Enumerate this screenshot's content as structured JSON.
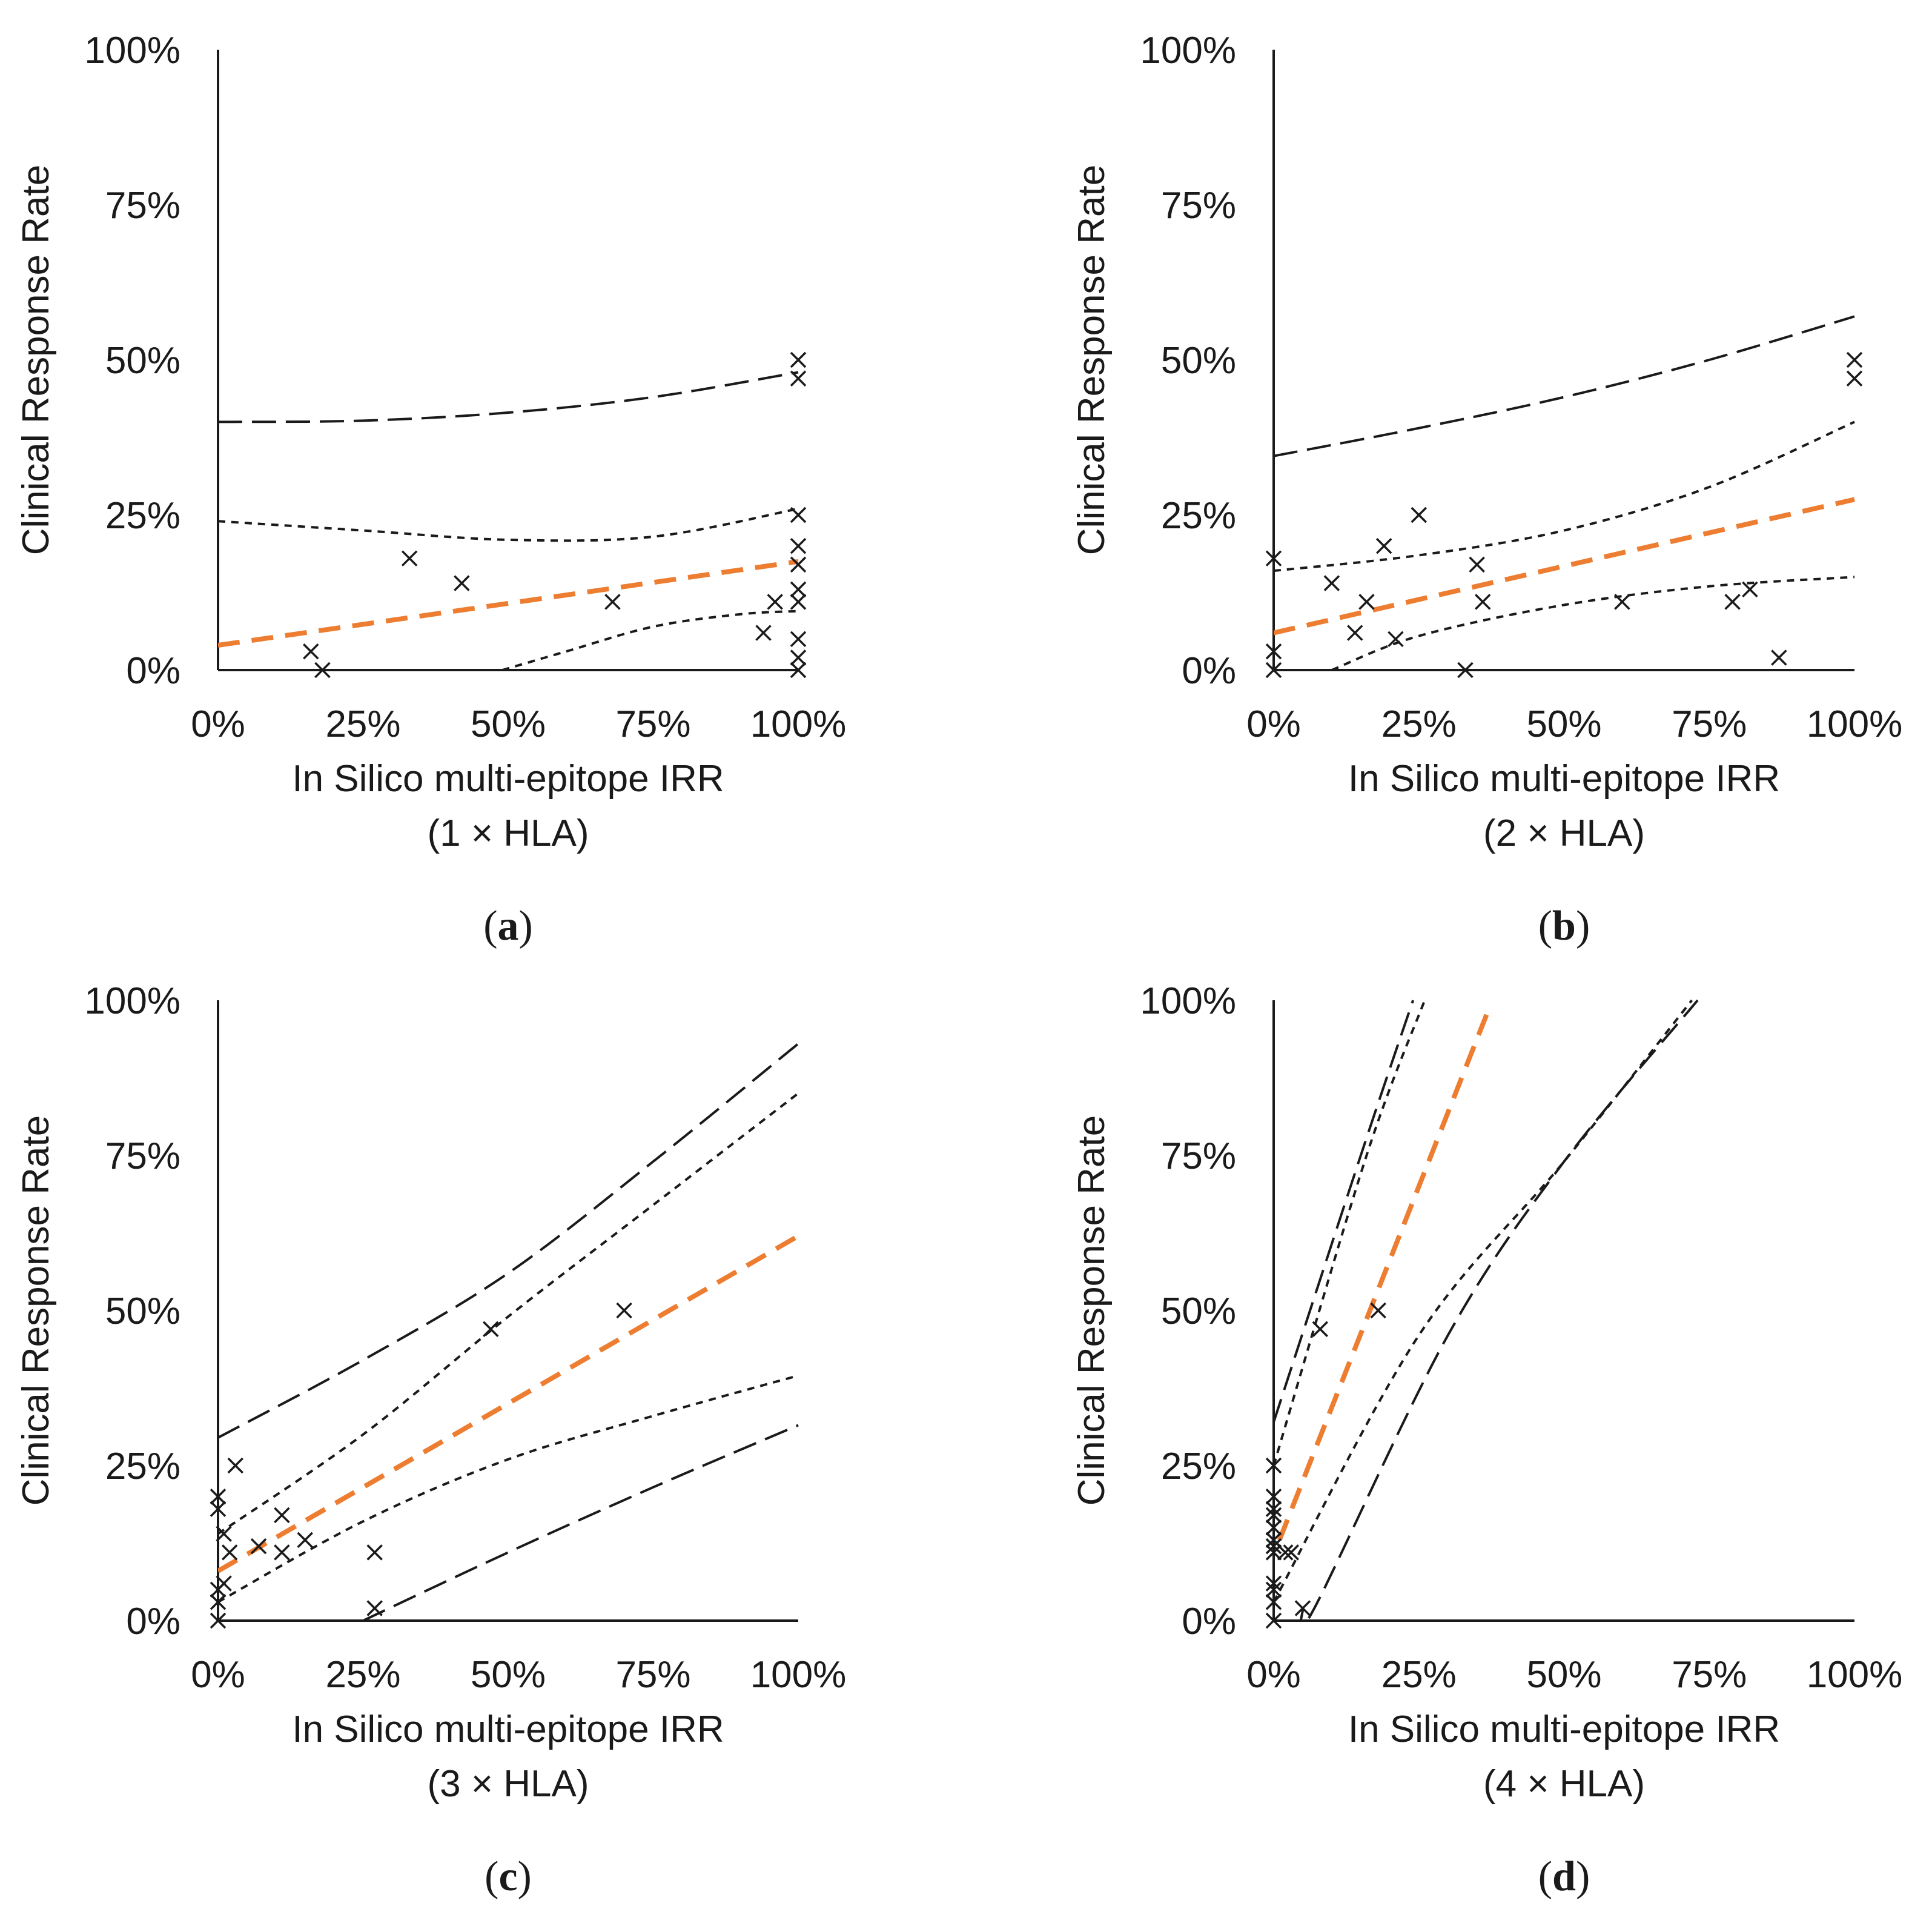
{
  "chart_data": [
    {
      "type": "scatter",
      "panel_label": "a",
      "xlabel": "In Silico multi-epitope IRR",
      "xlabel_sub": "(1 × HLA)",
      "ylabel": "Clinical Response Rate",
      "x_ticks": [
        "0%",
        "25%",
        "50%",
        "75%",
        "100%"
      ],
      "y_ticks": [
        "0%",
        "25%",
        "50%",
        "75%",
        "100%"
      ],
      "xlim": [
        0,
        100
      ],
      "ylim": [
        0,
        100
      ],
      "points": [
        [
          16,
          3
        ],
        [
          18,
          0
        ],
        [
          33,
          18
        ],
        [
          42,
          14
        ],
        [
          68,
          11
        ],
        [
          94,
          6
        ],
        [
          96,
          11
        ],
        [
          100,
          50
        ],
        [
          100,
          47
        ],
        [
          100,
          25
        ],
        [
          100,
          20
        ],
        [
          100,
          17
        ],
        [
          100,
          13
        ],
        [
          100,
          11
        ],
        [
          100,
          5
        ],
        [
          100,
          2
        ],
        [
          100,
          0
        ]
      ],
      "fit": [
        [
          0,
          4
        ],
        [
          100,
          17.5
        ]
      ],
      "ci_inner": [
        [
          [
            0,
            24
          ],
          [
            25,
            22.5
          ],
          [
            50,
            21
          ],
          [
            75,
            21.5
          ],
          [
            100,
            26
          ]
        ],
        [
          [
            49,
            0
          ],
          [
            60,
            3
          ],
          [
            75,
            7
          ],
          [
            90,
            9
          ],
          [
            100,
            9.5
          ]
        ]
      ],
      "ci_outer": [
        [
          [
            0,
            40
          ],
          [
            25,
            40.2
          ],
          [
            50,
            41.5
          ],
          [
            75,
            44
          ],
          [
            100,
            48
          ]
        ]
      ]
    },
    {
      "type": "scatter",
      "panel_label": "b",
      "xlabel": "In Silico multi-epitope IRR",
      "xlabel_sub": "(2 × HLA)",
      "ylabel": "Clinical Response Rate",
      "x_ticks": [
        "0%",
        "25%",
        "50%",
        "75%",
        "100%"
      ],
      "y_ticks": [
        "0%",
        "25%",
        "50%",
        "75%",
        "100%"
      ],
      "xlim": [
        0,
        100
      ],
      "ylim": [
        0,
        100
      ],
      "points": [
        [
          0,
          18
        ],
        [
          0,
          3
        ],
        [
          0,
          0
        ],
        [
          10,
          14
        ],
        [
          14,
          6
        ],
        [
          16,
          11
        ],
        [
          19,
          20
        ],
        [
          21,
          5
        ],
        [
          25,
          25
        ],
        [
          33,
          0
        ],
        [
          35,
          17
        ],
        [
          36,
          11
        ],
        [
          60,
          11
        ],
        [
          79,
          11
        ],
        [
          82,
          13
        ],
        [
          87,
          2
        ],
        [
          100,
          50
        ],
        [
          100,
          47
        ]
      ],
      "fit": [
        [
          0,
          6
        ],
        [
          100,
          27.5
        ]
      ],
      "ci_inner": [
        [
          [
            0,
            16
          ],
          [
            25,
            18.5
          ],
          [
            50,
            22.5
          ],
          [
            75,
            29.5
          ],
          [
            100,
            40
          ]
        ],
        [
          [
            10,
            0
          ],
          [
            25,
            5.5
          ],
          [
            50,
            10.5
          ],
          [
            75,
            13.5
          ],
          [
            100,
            15
          ]
        ]
      ],
      "ci_outer": [
        [
          [
            0,
            34.5
          ],
          [
            25,
            39
          ],
          [
            50,
            44
          ],
          [
            75,
            50
          ],
          [
            100,
            57
          ]
        ]
      ]
    },
    {
      "type": "scatter",
      "panel_label": "c",
      "xlabel": "In Silico multi-epitope IRR",
      "xlabel_sub": "(3 × HLA)",
      "ylabel": "Clinical Response Rate",
      "x_ticks": [
        "0%",
        "25%",
        "50%",
        "75%",
        "100%"
      ],
      "y_ticks": [
        "0%",
        "25%",
        "50%",
        "75%",
        "100%"
      ],
      "xlim": [
        0,
        100
      ],
      "ylim": [
        0,
        100
      ],
      "points": [
        [
          0,
          20
        ],
        [
          0,
          18
        ],
        [
          0,
          5
        ],
        [
          0,
          3
        ],
        [
          0,
          0
        ],
        [
          1,
          14
        ],
        [
          1,
          6
        ],
        [
          2,
          11
        ],
        [
          3,
          25
        ],
        [
          7,
          12
        ],
        [
          11,
          17
        ],
        [
          11,
          11
        ],
        [
          15,
          13
        ],
        [
          27,
          11
        ],
        [
          27,
          2
        ],
        [
          47,
          47
        ],
        [
          70,
          50
        ]
      ],
      "fit": [
        [
          0,
          8
        ],
        [
          100,
          62
        ]
      ],
      "ci_inner": [
        [
          [
            0,
            14
          ],
          [
            25,
            30
          ],
          [
            50,
            49
          ],
          [
            75,
            67
          ],
          [
            100,
            85
          ]
        ],
        [
          [
            0,
            3
          ],
          [
            25,
            16
          ],
          [
            50,
            26
          ],
          [
            75,
            33
          ],
          [
            100,
            39.5
          ]
        ]
      ],
      "ci_outer": [
        [
          [
            0,
            29.5
          ],
          [
            25,
            42
          ],
          [
            50,
            56
          ],
          [
            75,
            74
          ],
          [
            100,
            93
          ]
        ],
        [
          [
            25,
            0
          ],
          [
            50,
            11
          ],
          [
            75,
            21.5
          ],
          [
            100,
            31.5
          ]
        ]
      ]
    },
    {
      "type": "scatter",
      "panel_label": "d",
      "xlabel": "In Silico multi-epitope IRR",
      "xlabel_sub": "(4 × HLA)",
      "ylabel": "Clinical Response Rate",
      "x_ticks": [
        "0%",
        "25%",
        "50%",
        "75%",
        "100%"
      ],
      "y_ticks": [
        "0%",
        "25%",
        "50%",
        "75%",
        "100%"
      ],
      "xlim": [
        0,
        100
      ],
      "ylim": [
        0,
        100
      ],
      "points": [
        [
          0,
          25
        ],
        [
          0,
          20
        ],
        [
          0,
          18
        ],
        [
          0,
          17
        ],
        [
          0,
          15
        ],
        [
          0,
          13
        ],
        [
          0,
          12
        ],
        [
          0,
          11
        ],
        [
          0,
          6
        ],
        [
          0,
          5
        ],
        [
          0,
          3
        ],
        [
          0,
          0
        ],
        [
          2,
          11
        ],
        [
          3,
          11
        ],
        [
          5,
          2
        ],
        [
          8,
          47
        ],
        [
          18,
          50
        ]
      ],
      "fit": [
        [
          1,
          13
        ],
        [
          37,
          98.5
        ]
      ],
      "ci_inner": [
        [
          [
            0,
            25
          ],
          [
            16,
            75
          ],
          [
            26,
            100
          ]
        ],
        [
          [
            0,
            3
          ],
          [
            25,
            46
          ],
          [
            50,
            74
          ],
          [
            72,
            100
          ]
        ]
      ],
      "ci_outer": [
        [
          [
            0,
            32
          ],
          [
            15,
            75
          ],
          [
            24,
            100
          ]
        ],
        [
          [
            5,
            2
          ],
          [
            7,
            2
          ],
          [
            30,
            46
          ],
          [
            50,
            74
          ],
          [
            73,
            100
          ]
        ]
      ]
    }
  ]
}
